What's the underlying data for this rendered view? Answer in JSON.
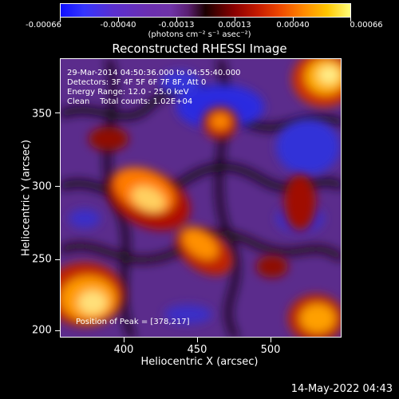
{
  "colorbar": {
    "ticks": [
      "-0.00066",
      "-0.00040",
      "-0.00013",
      "0.00013",
      "0.00040",
      "0.00066"
    ],
    "units": "(photons cm⁻² s⁻¹ asec⁻²)"
  },
  "title": "Reconstructed RHESSI Image",
  "info": {
    "time_range": "29-Mar-2014 04:50:36.000 to 04:55:40.000",
    "detectors": "Detectors: 3F 4F 5F 6F 7F 8F, Att 0",
    "energy": "Energy Range: 12.0 - 25.0 keV",
    "clean": "Clean    Total counts: 1.02E+04",
    "peak": "Position of Peak = [378,217]"
  },
  "axes": {
    "ylabel": "Heliocentric Y (arcsec)",
    "xlabel": "Heliocentric X (arcsec)",
    "yticks": [
      "350",
      "300",
      "250",
      "200"
    ],
    "xticks": [
      "400",
      "450",
      "500"
    ]
  },
  "footer": {
    "date": "14-May-2022 04:43"
  }
}
